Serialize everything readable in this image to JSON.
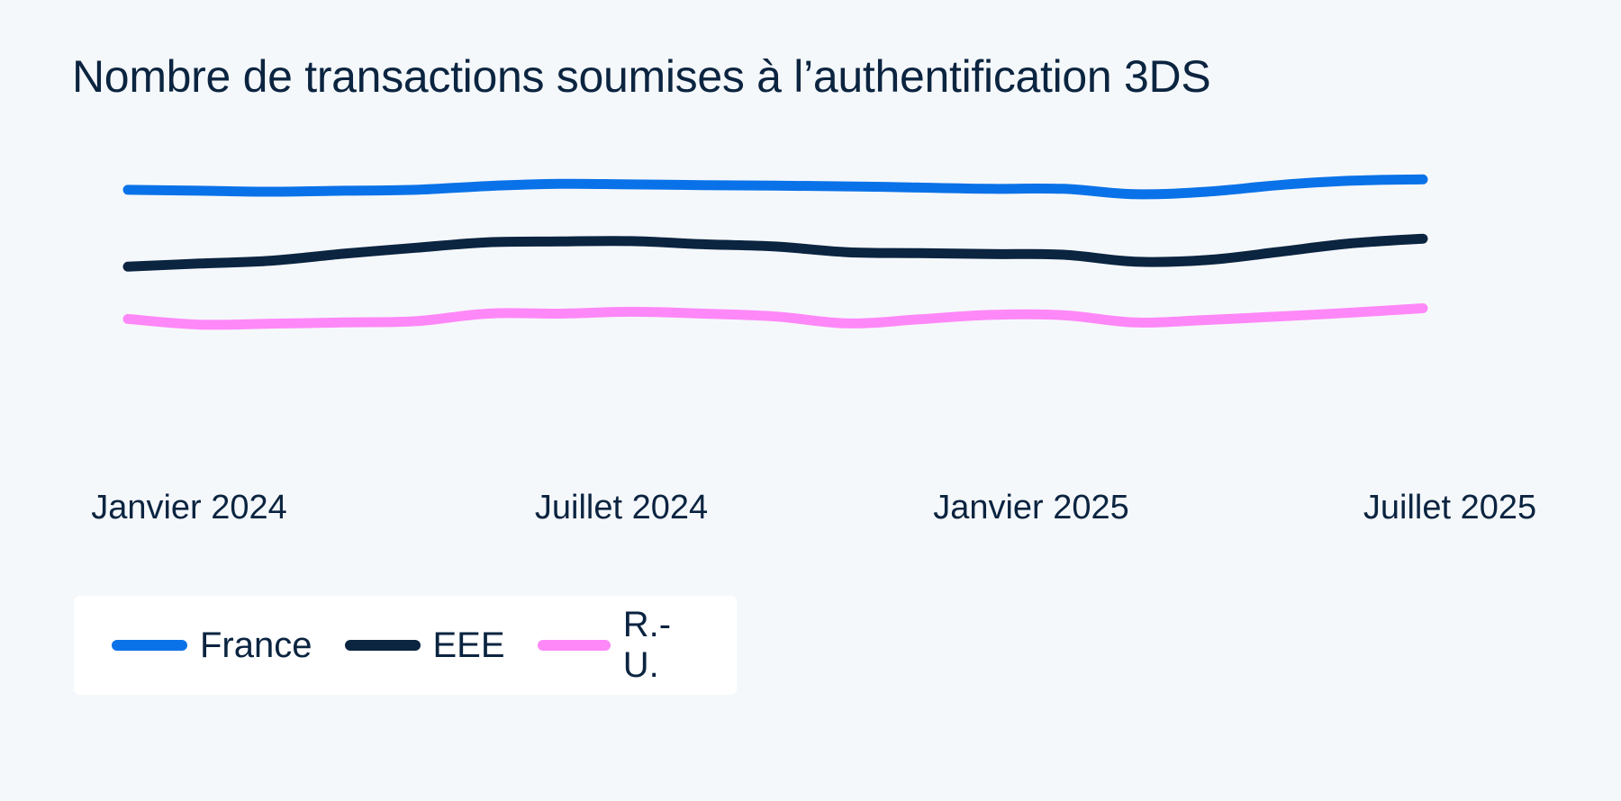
{
  "chart_data": {
    "type": "line",
    "title": "Nombre de transactions soumises à l’authentification 3DS",
    "xlabel": "",
    "ylabel": "",
    "x": [
      "2024-01",
      "2024-02",
      "2024-03",
      "2024-04",
      "2024-05",
      "2024-06",
      "2024-07",
      "2024-08",
      "2024-09",
      "2024-10",
      "2024-11",
      "2024-12",
      "2025-01",
      "2025-02",
      "2025-03",
      "2025-04",
      "2025-05",
      "2025-06",
      "2025-07"
    ],
    "x_ticks": [
      "Janvier 2024",
      "Juillet 2024",
      "Janvier 2025",
      "Juillet 2025"
    ],
    "ylim": [
      0,
      100
    ],
    "y_axis_visible": false,
    "grid": false,
    "legend_position": "bottom-left",
    "series": [
      {
        "name": "France",
        "color": "#0a72e8",
        "values": [
          82.6,
          82.3,
          82.0,
          82.3,
          82.6,
          83.8,
          84.5,
          84.3,
          84.1,
          83.9,
          83.7,
          83.3,
          82.9,
          82.9,
          81.2,
          82.0,
          84.1,
          85.5,
          85.9
        ]
      },
      {
        "name": "EEE",
        "color": "#0b2440",
        "values": [
          58.2,
          59.2,
          60.1,
          62.3,
          64.2,
          65.9,
          66.2,
          66.3,
          65.3,
          64.6,
          62.8,
          62.5,
          62.2,
          62.0,
          59.8,
          60.3,
          62.9,
          65.6,
          67.1
        ]
      },
      {
        "name": "R.-U.",
        "color": "#ff88f8",
        "values": [
          41.6,
          39.8,
          40.1,
          40.5,
          40.9,
          43.3,
          43.3,
          43.9,
          43.3,
          42.4,
          40.2,
          41.5,
          42.9,
          42.8,
          40.5,
          41.3,
          42.4,
          43.6,
          45.0
        ]
      }
    ]
  },
  "legend": {
    "items": [
      {
        "label": "France",
        "color": "#0a72e8"
      },
      {
        "label": "EEE",
        "color": "#0b2440"
      },
      {
        "label": "R.-U.",
        "color": "#ff88f8"
      }
    ]
  }
}
